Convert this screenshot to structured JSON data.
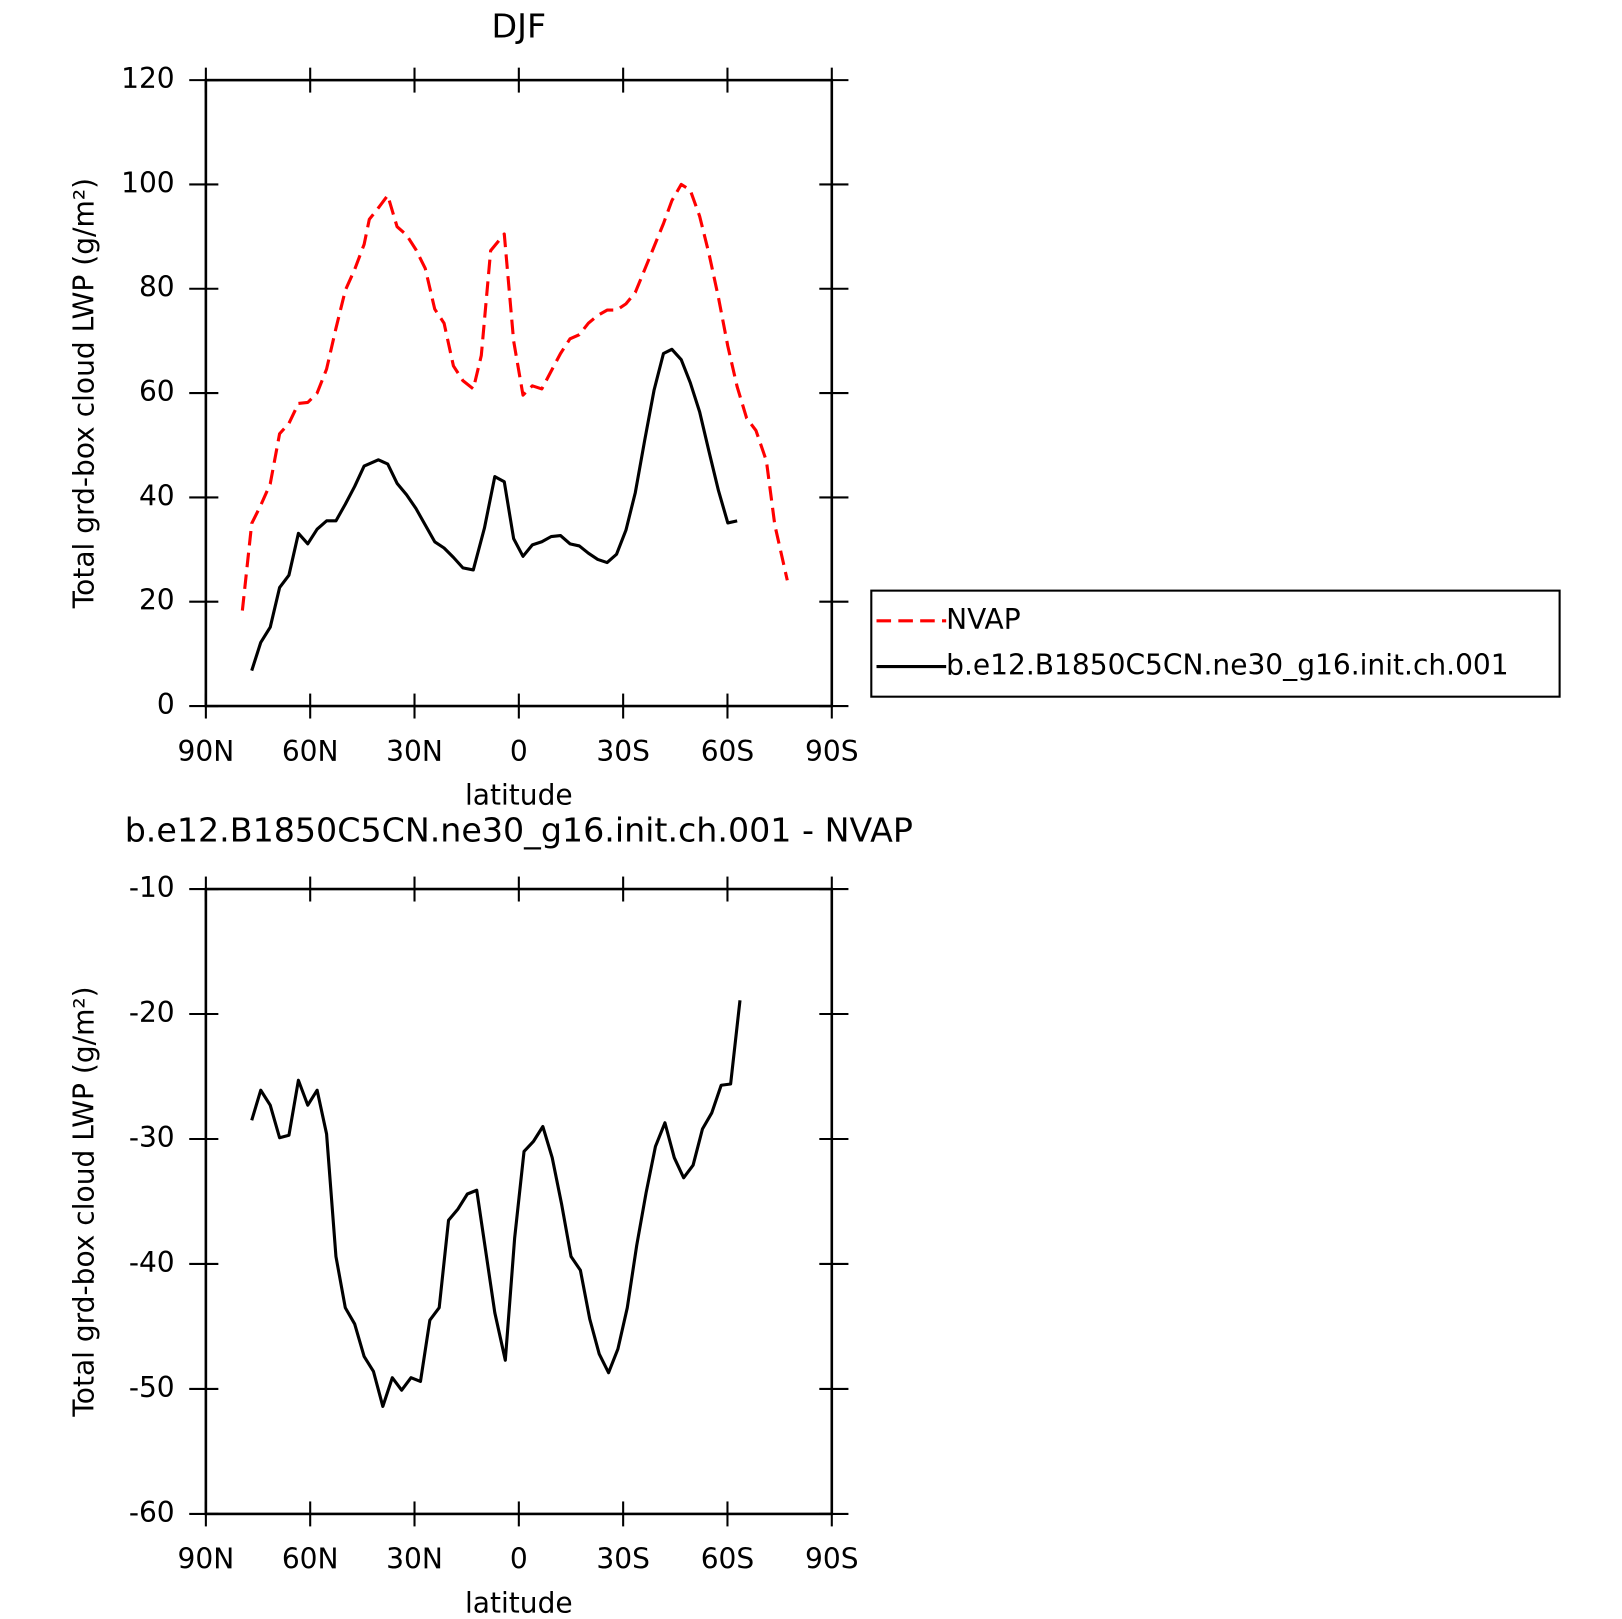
{
  "chart_data": [
    {
      "type": "line",
      "title": "DJF",
      "xlabel": "latitude",
      "ylabel": "Total grd-box cloud LWP (g/m²)",
      "xlim": [
        90,
        -90
      ],
      "xticks": [
        {
          "value": 90,
          "label": "90N"
        },
        {
          "value": 60,
          "label": "60N"
        },
        {
          "value": 30,
          "label": "30N"
        },
        0,
        {
          "value": -30,
          "label": "30S"
        },
        {
          "value": -60,
          "label": "60S"
        },
        {
          "value": -90,
          "label": "90S"
        }
      ],
      "ylim": [
        0,
        120
      ],
      "yticks": [
        0,
        20,
        40,
        60,
        80,
        100,
        120
      ],
      "legend": "right",
      "series": [
        {
          "name": "NVAP",
          "color": "#ff0000",
          "dash": "dashed",
          "x": [
            79.5,
            76.8,
            74.2,
            71.5,
            68.8,
            66.1,
            63.4,
            60.7,
            58.0,
            55.3,
            52.6,
            49.9,
            47.2,
            44.5,
            43.0,
            40.4,
            37.7,
            35.0,
            32.3,
            29.6,
            26.9,
            24.2,
            21.5,
            18.8,
            16.1,
            13.1,
            10.8,
            8.1,
            4.2,
            1.5,
            -1.2,
            -3.9,
            -6.6,
            -9.3,
            -12.0,
            -14.7,
            -17.4,
            -20.0,
            -22.7,
            -25.4,
            -28.1,
            -30.8,
            -33.5,
            -36.2,
            -38.9,
            -41.6,
            -44.0,
            -46.7,
            -49.3,
            -52.0,
            -54.7,
            -57.4,
            -60.1,
            -62.8,
            -65.5,
            -68.2,
            -71.2,
            -73.6,
            -77.2
          ],
          "values": [
            18.3,
            35,
            38.5,
            42.6,
            52.2,
            54.2,
            58,
            58.2,
            60,
            64.6,
            72.4,
            79.7,
            83.7,
            88.5,
            93.3,
            95.5,
            97.9,
            91.9,
            90.3,
            87.5,
            83.9,
            76.1,
            73.4,
            65.2,
            62.4,
            60.8,
            67.2,
            87.3,
            90.5,
            70,
            59.6,
            61.4,
            60.8,
            64.2,
            67.6,
            70.4,
            71.2,
            73.4,
            74.9,
            75.9,
            75.9,
            77.1,
            79.3,
            83.7,
            88.1,
            92.5,
            96.9,
            100,
            98.9,
            93.9,
            86.7,
            78.3,
            69,
            61.2,
            55.2,
            52.8,
            47,
            34.7,
            24.1
          ]
        },
        {
          "name": "b.e12.B1850C5CN.ne30_g16.init.ch.001",
          "color": "#000000",
          "dash": "solid",
          "x": [
            76.8,
            74.2,
            71.5,
            68.8,
            66.1,
            63.4,
            60.7,
            58.0,
            55.3,
            52.6,
            49.9,
            47.2,
            44.5,
            40.4,
            37.7,
            35.0,
            32.3,
            29.6,
            26.9,
            24.2,
            21.5,
            18.8,
            16.1,
            13.1,
            9.9,
            6.9,
            4.2,
            1.5,
            -1.2,
            -3.9,
            -6.6,
            -9.3,
            -12.0,
            -14.7,
            -17.4,
            -20.0,
            -22.7,
            -25.4,
            -28.1,
            -30.8,
            -33.5,
            -36.2,
            -38.9,
            -41.6,
            -44.0,
            -46.7,
            -49.3,
            -52.0,
            -54.7,
            -57.4,
            -60.1,
            -62.8
          ],
          "values": [
            6.8,
            12.2,
            15.1,
            22.7,
            25.1,
            33.1,
            31.1,
            33.9,
            35.5,
            35.5,
            38.7,
            42.1,
            46,
            47.2,
            46.4,
            42.7,
            40.5,
            37.9,
            34.7,
            31.5,
            30.3,
            28.5,
            26.5,
            26.1,
            34.1,
            44,
            43,
            32.1,
            28.7,
            30.9,
            31.5,
            32.5,
            32.7,
            31.1,
            30.7,
            29.3,
            28.1,
            27.5,
            29.1,
            33.7,
            40.9,
            51,
            60.6,
            67.6,
            68.4,
            66.4,
            62,
            56.4,
            48.8,
            41.3,
            35.1,
            35.5
          ]
        }
      ]
    },
    {
      "type": "line",
      "title": "b.e12.B1850C5CN.ne30_g16.init.ch.001 - NVAP",
      "xlabel": "latitude",
      "ylabel": "Total grd-box cloud LWP (g/m²)",
      "xlim": [
        90,
        -90
      ],
      "xticks": [
        {
          "value": 90,
          "label": "90N"
        },
        {
          "value": 60,
          "label": "60N"
        },
        {
          "value": 30,
          "label": "30N"
        },
        0,
        {
          "value": -30,
          "label": "30S"
        },
        {
          "value": -60,
          "label": "60S"
        },
        {
          "value": -90,
          "label": "90S"
        }
      ],
      "ylim": [
        -60,
        -10
      ],
      "yticks": [
        -60,
        -50,
        -40,
        -30,
        -20,
        -10
      ],
      "series": [
        {
          "color": "#000000",
          "dash": "solid",
          "x": [
            76.8,
            74.2,
            71.5,
            68.8,
            66.1,
            63.4,
            60.7,
            58.0,
            55.3,
            52.6,
            49.9,
            47.2,
            44.5,
            41.8,
            39.1,
            36.4,
            33.7,
            31.0,
            28.3,
            25.6,
            22.9,
            20.2,
            17.5,
            14.8,
            12.1,
            6.9,
            3.9,
            1.2,
            -1.5,
            -4.2,
            -6.9,
            -9.6,
            -12.3,
            -15.0,
            -17.7,
            -20.4,
            -23.1,
            -25.8,
            -28.5,
            -31.2,
            -33.9,
            -36.6,
            -39.3,
            -42.0,
            -44.7,
            -47.4,
            -50.1,
            -52.8,
            -55.5,
            -58.2,
            -60.9,
            -63.6
          ],
          "values": [
            -28.5,
            -26.1,
            -27.3,
            -29.9,
            -29.7,
            -25.3,
            -27.3,
            -26.1,
            -29.6,
            -39.4,
            -43.5,
            -44.8,
            -47.4,
            -48.6,
            -51.4,
            -49.1,
            -50.1,
            -49.1,
            -49.4,
            -44.5,
            -43.5,
            -36.5,
            -35.6,
            -34.4,
            -34.1,
            -43.9,
            -47.7,
            -37.9,
            -31,
            -30.2,
            -29,
            -31.5,
            -35.2,
            -39.4,
            -40.5,
            -44.4,
            -47.2,
            -48.7,
            -46.8,
            -43.5,
            -38.5,
            -34.3,
            -30.6,
            -28.7,
            -31.5,
            -33.1,
            -32.1,
            -29.2,
            -27.9,
            -25.7,
            -25.6,
            -18.9
          ]
        }
      ]
    }
  ]
}
